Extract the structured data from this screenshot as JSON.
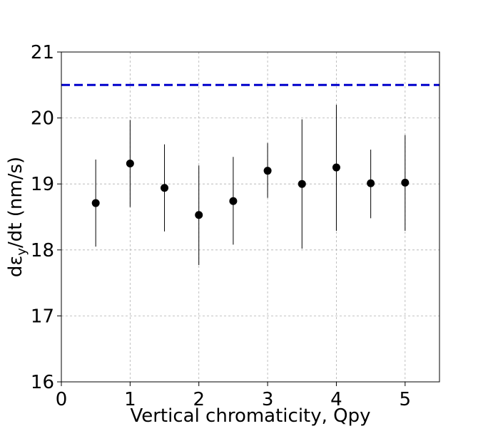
{
  "chart_data": {
    "type": "scatter",
    "title": "",
    "xlabel": "Vertical chromaticity, Qpy",
    "ylabel_prefix": "dε",
    "ylabel_sub": "y",
    "ylabel_suffix": "/dt (nm/s)",
    "xlim": [
      0,
      5.5
    ],
    "ylim": [
      16,
      21
    ],
    "xticks": [
      "0",
      "1",
      "2",
      "3",
      "4",
      "5"
    ],
    "xtick_values": [
      0,
      1,
      2,
      3,
      4,
      5
    ],
    "yticks": [
      "16",
      "17",
      "18",
      "19",
      "20",
      "21"
    ],
    "ytick_values": [
      16,
      17,
      18,
      19,
      20,
      21
    ],
    "grid": true,
    "series": [
      {
        "marker_color": "#000000",
        "x": [
          0.5,
          1.0,
          1.5,
          2.0,
          2.5,
          3.0,
          3.5,
          4.0,
          4.5,
          5.0
        ],
        "y": [
          18.71,
          19.31,
          18.94,
          18.53,
          18.74,
          19.2,
          19.0,
          19.25,
          19.01,
          19.02
        ],
        "yerr_low": [
          18.05,
          18.65,
          18.28,
          17.77,
          18.08,
          18.79,
          18.02,
          18.29,
          18.48,
          18.29
        ],
        "yerr_high": [
          19.37,
          19.97,
          19.6,
          19.28,
          19.41,
          19.62,
          19.98,
          20.2,
          19.52,
          19.74
        ]
      }
    ],
    "reference_line": {
      "y": 20.5,
      "color": "#0000cc",
      "style": "dashed"
    }
  }
}
